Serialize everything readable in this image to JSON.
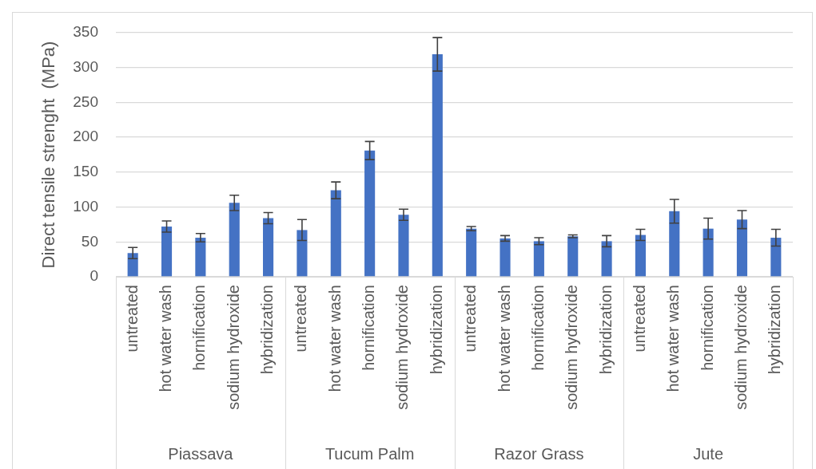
{
  "chart_data": {
    "type": "bar",
    "ylabel": "Direct tensile strenght  (MPa)",
    "categories": [
      "untreated",
      "hot water wash",
      "hornification",
      "sodium hydroxide",
      "hybridization",
      "untreated",
      "hot water wash",
      "hornification",
      "sodium hydroxide",
      "hybridization",
      "untreated",
      "hot water wash",
      "hornification",
      "sodium hydroxide",
      "hybridization",
      "untreated",
      "hot water wash",
      "hornification",
      "sodium hydroxide",
      "hybridization"
    ],
    "values": [
      34,
      72,
      56,
      106,
      84,
      67,
      124,
      181,
      89,
      319,
      69,
      55,
      51,
      58,
      51,
      60,
      94,
      69,
      82,
      56
    ],
    "errors": [
      8,
      8,
      6,
      11,
      8,
      15,
      12,
      13,
      8,
      24,
      3,
      4,
      5,
      2,
      8,
      8,
      17,
      15,
      13,
      12
    ],
    "color": "#4472c4",
    "ylim": [
      0,
      350
    ],
    "yticks": [
      0,
      50,
      100,
      150,
      200,
      250,
      300,
      350
    ],
    "grid": "y",
    "annotations": [
      "Piassava",
      "Tucum Palm",
      "Razor Grass",
      "Jute"
    ]
  }
}
